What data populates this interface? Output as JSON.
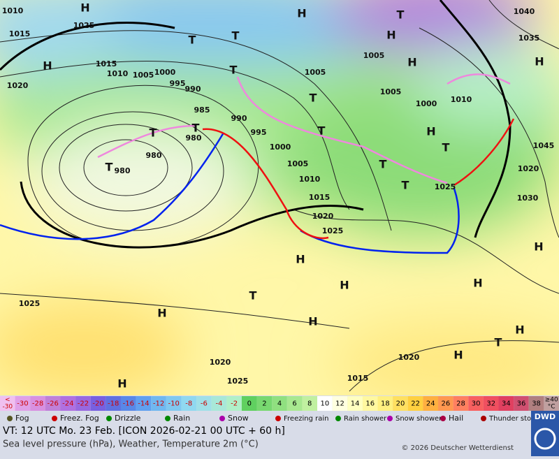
{
  "map": {
    "labels": [
      "H",
      "1010",
      "1025",
      "1015",
      "H",
      "1015",
      "1010",
      "1005",
      "1000",
      "1020",
      "995",
      "990",
      "985",
      "T",
      "T",
      "980",
      "980",
      "T",
      "980",
      "990",
      "995",
      "1000",
      "1005",
      "1010",
      "1015",
      "1020",
      "1025",
      "T",
      "T",
      "T",
      "H",
      "1005",
      "T",
      "T",
      "1005",
      "H",
      "T",
      "H",
      "1005",
      "1000",
      "1010",
      "H",
      "T",
      "T",
      "T",
      "1025",
      "1020",
      "1030",
      "1045",
      "1040",
      "1035",
      "H",
      "H",
      "H",
      "H",
      "T",
      "H",
      "H",
      "H",
      "1025",
      "1020",
      "H",
      "1025",
      "1020",
      "H",
      "1015",
      "T",
      "H"
    ]
  },
  "temperature_scale": {
    "lower_bound": {
      "symbol": "<",
      "value": -30,
      "color": "#f0c0f0"
    },
    "values": [
      -30,
      -28,
      -26,
      -24,
      -22,
      -20,
      -18,
      -16,
      -14,
      -12,
      -10,
      -8,
      -6,
      -4,
      -2,
      0,
      2,
      4,
      6,
      8,
      10,
      12,
      14,
      16,
      18,
      20,
      22,
      24,
      26,
      28,
      30,
      32,
      34,
      36,
      38
    ],
    "colors": [
      "#e0a0e8",
      "#d890e0",
      "#c080d8",
      "#b070e0",
      "#9868e0",
      "#7860e0",
      "#6070e0",
      "#5888e8",
      "#60a0f0",
      "#70b8f0",
      "#80c8f0",
      "#90d8f0",
      "#a0e0e8",
      "#a8e8d8",
      "#b0f0c8",
      "#60d060",
      "#78d870",
      "#90e080",
      "#a8e890",
      "#c0f0a0",
      "#ffffff",
      "#ffffe0",
      "#ffffc0",
      "#fff8a0",
      "#fff080",
      "#ffe060",
      "#ffd040",
      "#ffb040",
      "#ff9850",
      "#ff8060",
      "#f86060",
      "#f05060",
      "#e04060",
      "#d05070",
      "#b08080"
    ],
    "upper_bound": {
      "symbol": "≥40",
      "unit": "°C",
      "color": "#c0a0a0"
    }
  },
  "weather_legend": [
    "Fog",
    "Freez. Fog",
    "Drizzle",
    "Rain",
    "Snow",
    "Freezing rain",
    "Rain shower",
    "Snow shower",
    "Hail",
    "Thunder storm"
  ],
  "footer": {
    "valid_time": "VT: 12 UTC Mo.  23 Feb. [ICON 2026-02-21  00 UTC + 60 h]",
    "description": "Sea level pressure (hPa), Weather, Temperature 2m (°C)",
    "copyright": "© 2026 Deutscher Wetterdienst",
    "logo": "DWD"
  }
}
